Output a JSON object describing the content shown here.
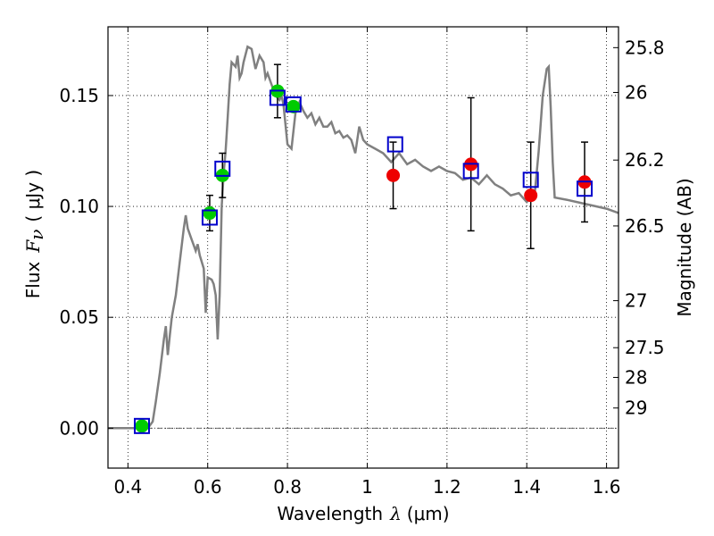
{
  "chart_data": {
    "type": "scatter",
    "xlabel_main": "Wavelength",
    "xlabel_symbol": "λ",
    "xlabel_unit": "(μm)",
    "ylabel_main": "Flux",
    "ylabel_symbol": "F",
    "ylabel_subscript": "ν",
    "ylabel_unit": "( μJy )",
    "y2label": "Magnitude (AB)",
    "xlim": [
      0.35,
      1.63
    ],
    "ylim": [
      -0.018,
      0.181
    ],
    "grid": true,
    "x_ticks": [
      {
        "v": 0.4,
        "label": "0.4"
      },
      {
        "v": 0.6,
        "label": "0.6"
      },
      {
        "v": 0.8,
        "label": "0.8"
      },
      {
        "v": 1.0,
        "label": "1"
      },
      {
        "v": 1.2,
        "label": "1.2"
      },
      {
        "v": 1.4,
        "label": "1.4"
      },
      {
        "v": 1.6,
        "label": "1.6"
      }
    ],
    "y_ticks": [
      {
        "v": 0.0,
        "label": "0.00"
      },
      {
        "v": 0.05,
        "label": "0.05"
      },
      {
        "v": 0.1,
        "label": "0.10"
      },
      {
        "v": 0.15,
        "label": "0.15"
      }
    ],
    "mag_ticks": [
      {
        "v": 0.1716,
        "label": "25.8"
      },
      {
        "v": 0.1514,
        "label": "26"
      },
      {
        "v": 0.1209,
        "label": "26.2"
      },
      {
        "v": 0.0912,
        "label": "26.5"
      },
      {
        "v": 0.0575,
        "label": "27"
      },
      {
        "v": 0.0363,
        "label": "27.5"
      },
      {
        "v": 0.0229,
        "label": "28"
      },
      {
        "v": 0.0091,
        "label": "29"
      }
    ],
    "model_spectrum": {
      "color": "#808080",
      "points": [
        [
          0.35,
          0.0
        ],
        [
          0.45,
          0.0
        ],
        [
          0.462,
          0.003
        ],
        [
          0.47,
          0.012
        ],
        [
          0.48,
          0.025
        ],
        [
          0.49,
          0.04
        ],
        [
          0.495,
          0.046
        ],
        [
          0.5,
          0.033
        ],
        [
          0.505,
          0.042
        ],
        [
          0.51,
          0.05
        ],
        [
          0.52,
          0.06
        ],
        [
          0.53,
          0.075
        ],
        [
          0.54,
          0.09
        ],
        [
          0.545,
          0.096
        ],
        [
          0.55,
          0.09
        ],
        [
          0.56,
          0.085
        ],
        [
          0.57,
          0.08
        ],
        [
          0.575,
          0.083
        ],
        [
          0.58,
          0.078
        ],
        [
          0.59,
          0.072
        ],
        [
          0.595,
          0.052
        ],
        [
          0.6,
          0.068
        ],
        [
          0.61,
          0.067
        ],
        [
          0.615,
          0.065
        ],
        [
          0.62,
          0.06
        ],
        [
          0.625,
          0.04
        ],
        [
          0.63,
          0.06
        ],
        [
          0.635,
          0.1
        ],
        [
          0.64,
          0.115
        ],
        [
          0.645,
          0.125
        ],
        [
          0.65,
          0.14
        ],
        [
          0.655,
          0.155
        ],
        [
          0.66,
          0.165
        ],
        [
          0.67,
          0.163
        ],
        [
          0.675,
          0.168
        ],
        [
          0.68,
          0.158
        ],
        [
          0.685,
          0.16
        ],
        [
          0.69,
          0.165
        ],
        [
          0.7,
          0.172
        ],
        [
          0.71,
          0.171
        ],
        [
          0.72,
          0.162
        ],
        [
          0.73,
          0.168
        ],
        [
          0.74,
          0.165
        ],
        [
          0.745,
          0.158
        ],
        [
          0.75,
          0.16
        ],
        [
          0.76,
          0.155
        ],
        [
          0.77,
          0.15
        ],
        [
          0.78,
          0.148
        ],
        [
          0.785,
          0.15
        ],
        [
          0.79,
          0.146
        ],
        [
          0.8,
          0.128
        ],
        [
          0.81,
          0.126
        ],
        [
          0.82,
          0.142
        ],
        [
          0.83,
          0.147
        ],
        [
          0.84,
          0.143
        ],
        [
          0.85,
          0.14
        ],
        [
          0.86,
          0.142
        ],
        [
          0.87,
          0.137
        ],
        [
          0.88,
          0.14
        ],
        [
          0.89,
          0.136
        ],
        [
          0.9,
          0.136
        ],
        [
          0.91,
          0.138
        ],
        [
          0.92,
          0.133
        ],
        [
          0.93,
          0.134
        ],
        [
          0.94,
          0.131
        ],
        [
          0.95,
          0.132
        ],
        [
          0.96,
          0.13
        ],
        [
          0.97,
          0.124
        ],
        [
          0.98,
          0.136
        ],
        [
          0.99,
          0.13
        ],
        [
          1.0,
          0.128
        ],
        [
          1.02,
          0.126
        ],
        [
          1.04,
          0.124
        ],
        [
          1.06,
          0.12
        ],
        [
          1.08,
          0.124
        ],
        [
          1.1,
          0.119
        ],
        [
          1.12,
          0.121
        ],
        [
          1.14,
          0.118
        ],
        [
          1.16,
          0.116
        ],
        [
          1.18,
          0.118
        ],
        [
          1.2,
          0.116
        ],
        [
          1.22,
          0.115
        ],
        [
          1.24,
          0.112
        ],
        [
          1.26,
          0.113
        ],
        [
          1.28,
          0.11
        ],
        [
          1.3,
          0.114
        ],
        [
          1.32,
          0.11
        ],
        [
          1.34,
          0.108
        ],
        [
          1.36,
          0.105
        ],
        [
          1.38,
          0.106
        ],
        [
          1.4,
          0.102
        ],
        [
          1.42,
          0.106
        ],
        [
          1.43,
          0.125
        ],
        [
          1.44,
          0.15
        ],
        [
          1.45,
          0.162
        ],
        [
          1.455,
          0.163
        ],
        [
          1.46,
          0.145
        ],
        [
          1.465,
          0.12
        ],
        [
          1.47,
          0.104
        ],
        [
          1.5,
          0.103
        ],
        [
          1.55,
          0.101
        ],
        [
          1.6,
          0.099
        ],
        [
          1.63,
          0.097
        ]
      ]
    },
    "model_photometry": {
      "color": "#0000cc",
      "marker": "open-square",
      "points": [
        [
          0.435,
          0.001
        ],
        [
          0.605,
          0.095
        ],
        [
          0.637,
          0.117
        ],
        [
          0.775,
          0.149
        ],
        [
          0.815,
          0.146
        ],
        [
          1.07,
          0.128
        ],
        [
          1.26,
          0.116
        ],
        [
          1.41,
          0.112
        ],
        [
          1.545,
          0.108
        ]
      ]
    },
    "series": [
      {
        "color": "#00cc00",
        "points": [
          {
            "x": 0.435,
            "y": 0.001,
            "yerr": 0.0
          },
          {
            "x": 0.605,
            "y": 0.097,
            "yerr": 0.008
          },
          {
            "x": 0.637,
            "y": 0.114,
            "yerr": 0.01
          },
          {
            "x": 0.775,
            "y": 0.152,
            "yerr": 0.012
          },
          {
            "x": 0.815,
            "y": 0.145,
            "yerr": 0.0
          }
        ]
      },
      {
        "color": "#ee0000",
        "points": [
          {
            "x": 1.065,
            "y": 0.114,
            "yerr": 0.015
          },
          {
            "x": 1.26,
            "y": 0.119,
            "yerr": 0.03
          },
          {
            "x": 1.41,
            "y": 0.105,
            "yerr": 0.024
          },
          {
            "x": 1.545,
            "y": 0.111,
            "yerr": 0.018
          }
        ]
      }
    ]
  }
}
